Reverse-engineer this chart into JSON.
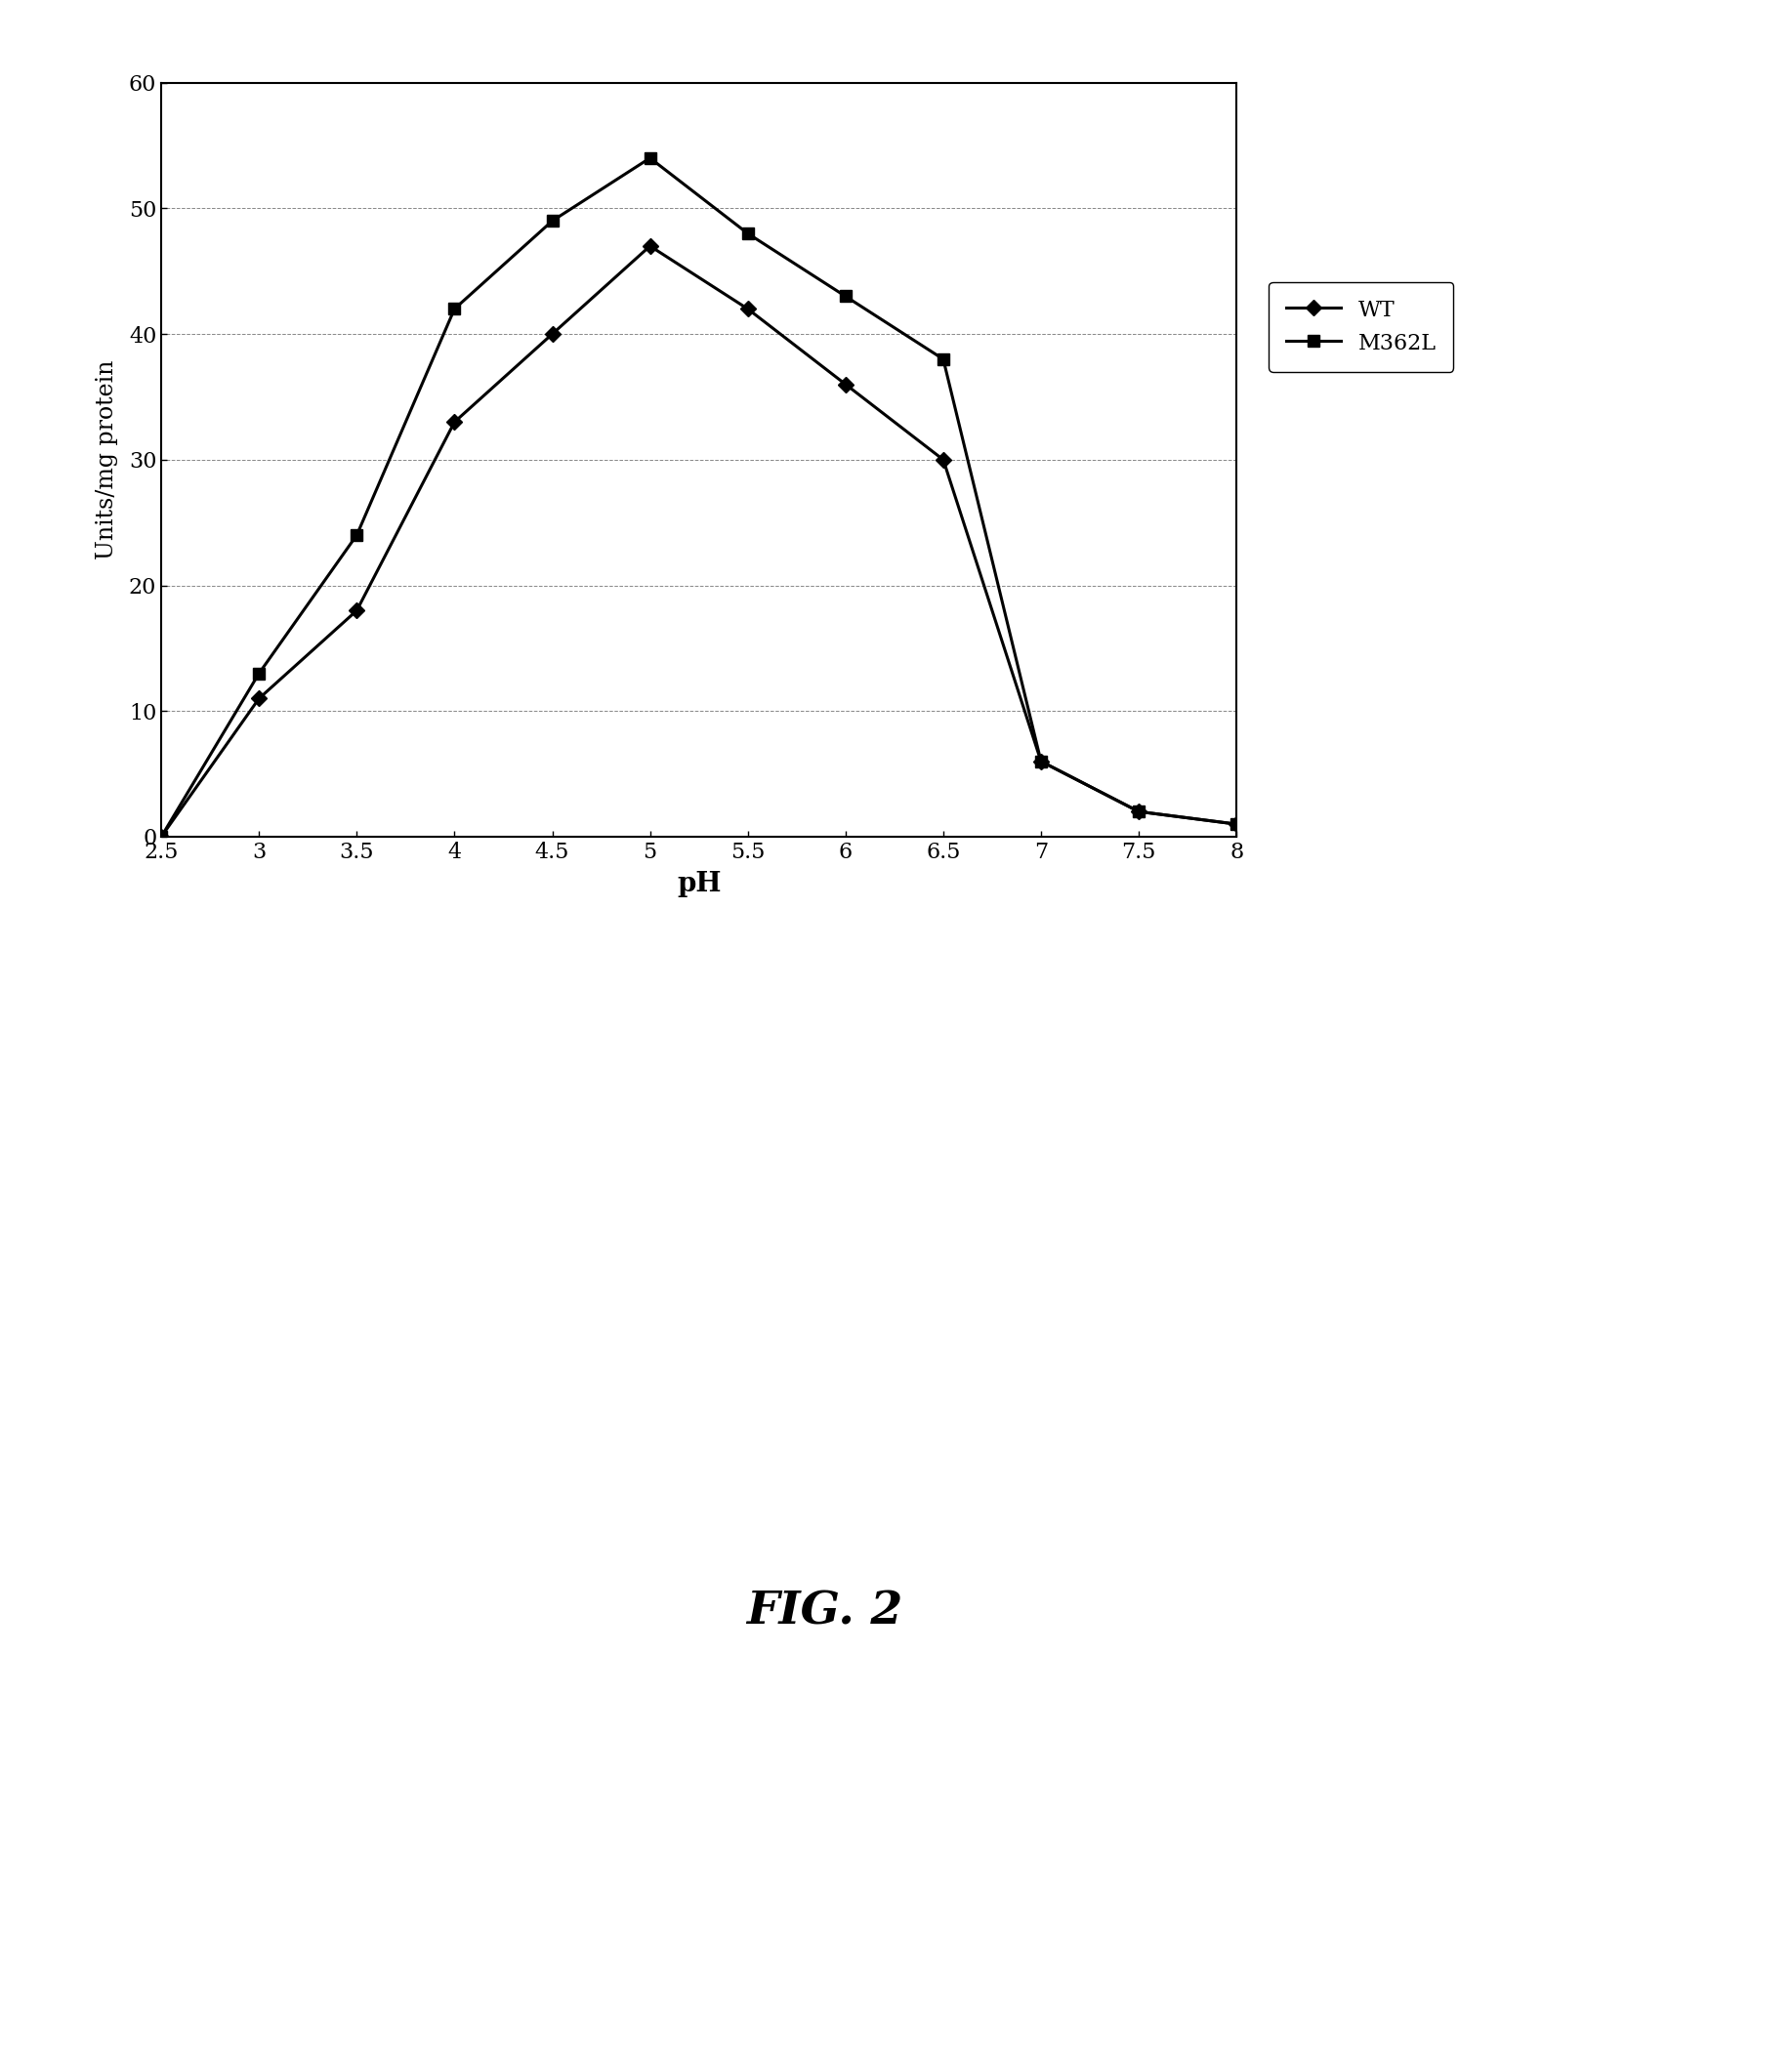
{
  "wt_x": [
    2.5,
    3.0,
    3.5,
    4.0,
    4.5,
    5.0,
    5.5,
    6.0,
    6.5,
    7.0,
    7.5,
    8.0
  ],
  "wt_y": [
    0,
    11,
    18,
    33,
    40,
    47,
    42,
    36,
    30,
    6,
    2,
    1
  ],
  "m362l_x": [
    2.5,
    3.0,
    3.5,
    4.0,
    4.5,
    5.0,
    5.5,
    6.0,
    6.5,
    7.0,
    7.5,
    8.0
  ],
  "m362l_y": [
    0,
    13,
    24,
    42,
    49,
    54,
    48,
    43,
    38,
    6,
    2,
    1
  ],
  "xlabel": "pH",
  "ylabel": "Units/mg protein",
  "ylim": [
    0,
    60
  ],
  "xlim": [
    2.5,
    8.0
  ],
  "xticks": [
    2.5,
    3.0,
    3.5,
    4.0,
    4.5,
    5.0,
    5.5,
    6.0,
    6.5,
    7.0,
    7.5,
    8.0
  ],
  "xtick_labels": [
    "2.5",
    "3",
    "3.5",
    "4",
    "4.5",
    "5",
    "5.5",
    "6",
    "6.5",
    "7",
    "7.5",
    "8"
  ],
  "yticks": [
    0,
    10,
    20,
    30,
    40,
    50,
    60
  ],
  "ytick_labels": [
    "0",
    "10",
    "20",
    "30",
    "40",
    "50",
    "60"
  ],
  "line_color": "#000000",
  "background_color": "#ffffff",
  "fig_caption": "FIG. 2",
  "legend_labels": [
    "WT",
    "M362L"
  ]
}
